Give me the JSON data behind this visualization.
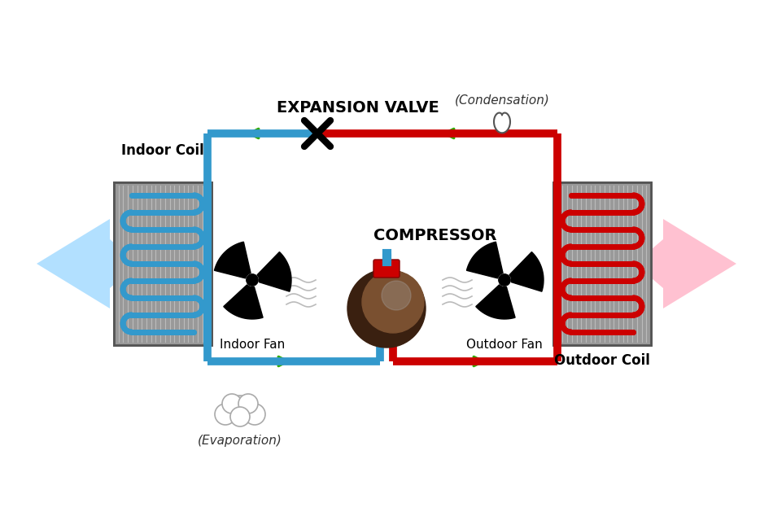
{
  "bg_color": "#ffffff",
  "blue_color": "#3399CC",
  "red_color": "#CC0000",
  "green_color": "#33AA00",
  "gray_color": "#808080",
  "light_blue": "#AADDFF",
  "light_red": "#FFBBBB",
  "title_compressor": "COMPRESSOR",
  "title_expansion": "EXPANSION VALVE",
  "label_indoor_coil": "Indoor Coil",
  "label_outdoor_coil": "Outdoor Coil",
  "label_indoor_fan": "Indoor Fan",
  "label_outdoor_fan": "Outdoor Fan",
  "label_evaporation": "(Evaporation)",
  "label_condensation": "(Condensation)",
  "figsize": [
    9.5,
    6.34
  ],
  "dpi": 100
}
